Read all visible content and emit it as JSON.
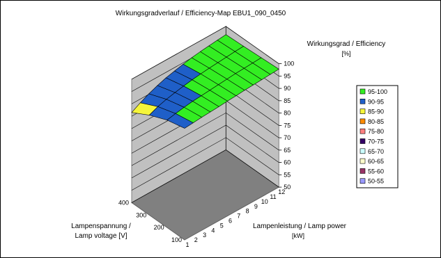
{
  "chart_data": {
    "type": "surface",
    "title": "Wirkungsgradverlauf / Efficiency-Map EBU1_090_0450",
    "z_axis": {
      "label_line1": "Wirkungsgrad / Efficiency",
      "label_line2": "[%]",
      "range": [
        50,
        100
      ],
      "ticks": [
        "50",
        "55",
        "60",
        "65",
        "70",
        "75",
        "80",
        "85",
        "90",
        "95",
        "100"
      ]
    },
    "x_axis": {
      "label_line1": "Lampenleistung / Lamp power",
      "label_line2": "[kW]",
      "ticks": [
        "1",
        "2",
        "3",
        "4",
        "5",
        "6",
        "7",
        "8",
        "9",
        "10",
        "11",
        "12"
      ]
    },
    "y_axis": {
      "label_line1": "Lampenspannung /",
      "label_line2": "Lamp voltage [V]",
      "ticks": [
        "100",
        "200",
        "300",
        "400"
      ]
    },
    "legend": {
      "placement": "right",
      "entries": [
        {
          "label": "95-100",
          "color": "#33ee22"
        },
        {
          "label": "90-95",
          "color": "#1f5fc8"
        },
        {
          "label": "85-90",
          "color": "#f5f53a"
        },
        {
          "label": "80-85",
          "color": "#ff8c00"
        },
        {
          "label": "75-80",
          "color": "#ff8080"
        },
        {
          "label": "70-75",
          "color": "#330066"
        },
        {
          "label": "65-70",
          "color": "#ccffff"
        },
        {
          "label": "60-65",
          "color": "#ffffcc"
        },
        {
          "label": "55-60",
          "color": "#993366"
        },
        {
          "label": "50-55",
          "color": "#9999ff"
        }
      ]
    },
    "surface": {
      "voltage_rows": [
        "100",
        "200",
        "300",
        "400"
      ],
      "power_cols": [
        "1",
        "2",
        "3",
        "4",
        "5",
        "6",
        "7",
        "8",
        "9",
        "10",
        "11",
        "12"
      ],
      "values": [
        [
          95.2,
          95.5,
          95.8,
          96.0,
          96.2,
          96.5,
          96.7,
          97.0,
          97.2,
          97.4,
          97.6,
          97.8
        ],
        [
          93.5,
          94.2,
          94.8,
          95.3,
          95.6,
          95.9,
          96.2,
          96.5,
          96.8,
          97.0,
          97.2,
          97.4
        ],
        [
          90.5,
          92.0,
          93.0,
          93.8,
          94.5,
          95.1,
          95.5,
          95.9,
          96.2,
          96.5,
          96.8,
          97.0
        ],
        [
          86.5,
          88.5,
          90.2,
          91.6,
          92.8,
          93.6,
          94.4,
          95.1,
          95.6,
          96.0,
          96.4,
          96.7
        ]
      ]
    },
    "grid": true
  }
}
